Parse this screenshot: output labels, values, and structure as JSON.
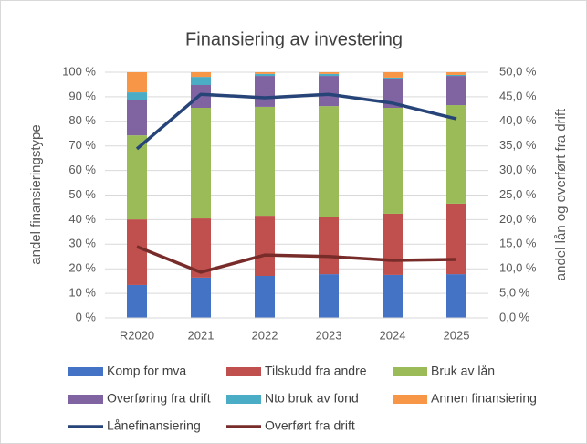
{
  "chart_data": {
    "type": "bar",
    "title": "Finansiering av investering",
    "ylabel": "andel finansieringstype",
    "y2label": "andel lån og overført fra drift",
    "categories": [
      "R2020",
      "2021",
      "2022",
      "2023",
      "2024",
      "2025"
    ],
    "stacked": true,
    "grid": true,
    "legend": "bottom",
    "ylim": [
      0,
      100
    ],
    "yticks": [
      {
        "value": 0,
        "label": "0 %"
      },
      {
        "value": 10,
        "label": "10 %"
      },
      {
        "value": 20,
        "label": "20 %"
      },
      {
        "value": 30,
        "label": "30 %"
      },
      {
        "value": 40,
        "label": "40 %"
      },
      {
        "value": 50,
        "label": "50 %"
      },
      {
        "value": 60,
        "label": "60 %"
      },
      {
        "value": 70,
        "label": "70 %"
      },
      {
        "value": 80,
        "label": "80 %"
      },
      {
        "value": 90,
        "label": "90 %"
      },
      {
        "value": 100,
        "label": "100 %"
      }
    ],
    "y2lim": [
      0,
      50
    ],
    "y2ticks": [
      {
        "value": 0,
        "label": "0,0 %"
      },
      {
        "value": 5,
        "label": "5,0 %"
      },
      {
        "value": 10,
        "label": "10,0 %"
      },
      {
        "value": 15,
        "label": "15,0 %"
      },
      {
        "value": 20,
        "label": "20,0 %"
      },
      {
        "value": 25,
        "label": "25,0 %"
      },
      {
        "value": 30,
        "label": "30,0 %"
      },
      {
        "value": 35,
        "label": "35,0 %"
      },
      {
        "value": 40,
        "label": "40,0 %"
      },
      {
        "value": 45,
        "label": "45,0 %"
      },
      {
        "value": 50,
        "label": "50,0 %"
      }
    ],
    "series": [
      {
        "name": "Komp for mva",
        "color": "#4472c4",
        "values": [
          13.4,
          16.4,
          17.1,
          17.8,
          17.5,
          17.8
        ]
      },
      {
        "name": "Tilskudd fra andre",
        "color": "#c0504d",
        "values": [
          26.7,
          24.1,
          24.5,
          23.1,
          24.9,
          28.7
        ]
      },
      {
        "name": "Bruk av lån",
        "color": "#9bbb59",
        "values": [
          34.2,
          45.0,
          44.3,
          45.3,
          43.1,
          40.1
        ]
      },
      {
        "name": "Overføring fra drift",
        "color": "#8064a2",
        "values": [
          14.2,
          9.3,
          12.6,
          12.3,
          11.9,
          11.9
        ]
      },
      {
        "name": "Nto bruk av fond",
        "color": "#4bacc6",
        "values": [
          3.3,
          3.3,
          0.8,
          0.8,
          0.4,
          0.4
        ]
      },
      {
        "name": "Annen finansiering",
        "color": "#f79646",
        "values": [
          8.2,
          1.9,
          0.7,
          0.7,
          2.2,
          1.1
        ]
      },
      {
        "name": "Lånefinansiering",
        "color": "#264478",
        "type": "line",
        "axis": "y2",
        "values": [
          34.4,
          45.5,
          44.8,
          45.5,
          43.7,
          40.5
        ]
      },
      {
        "name": "Overført fra drift",
        "color": "#772c2a",
        "type": "line",
        "axis": "y2",
        "values": [
          14.5,
          9.3,
          12.8,
          12.5,
          11.7,
          11.9
        ]
      }
    ]
  }
}
